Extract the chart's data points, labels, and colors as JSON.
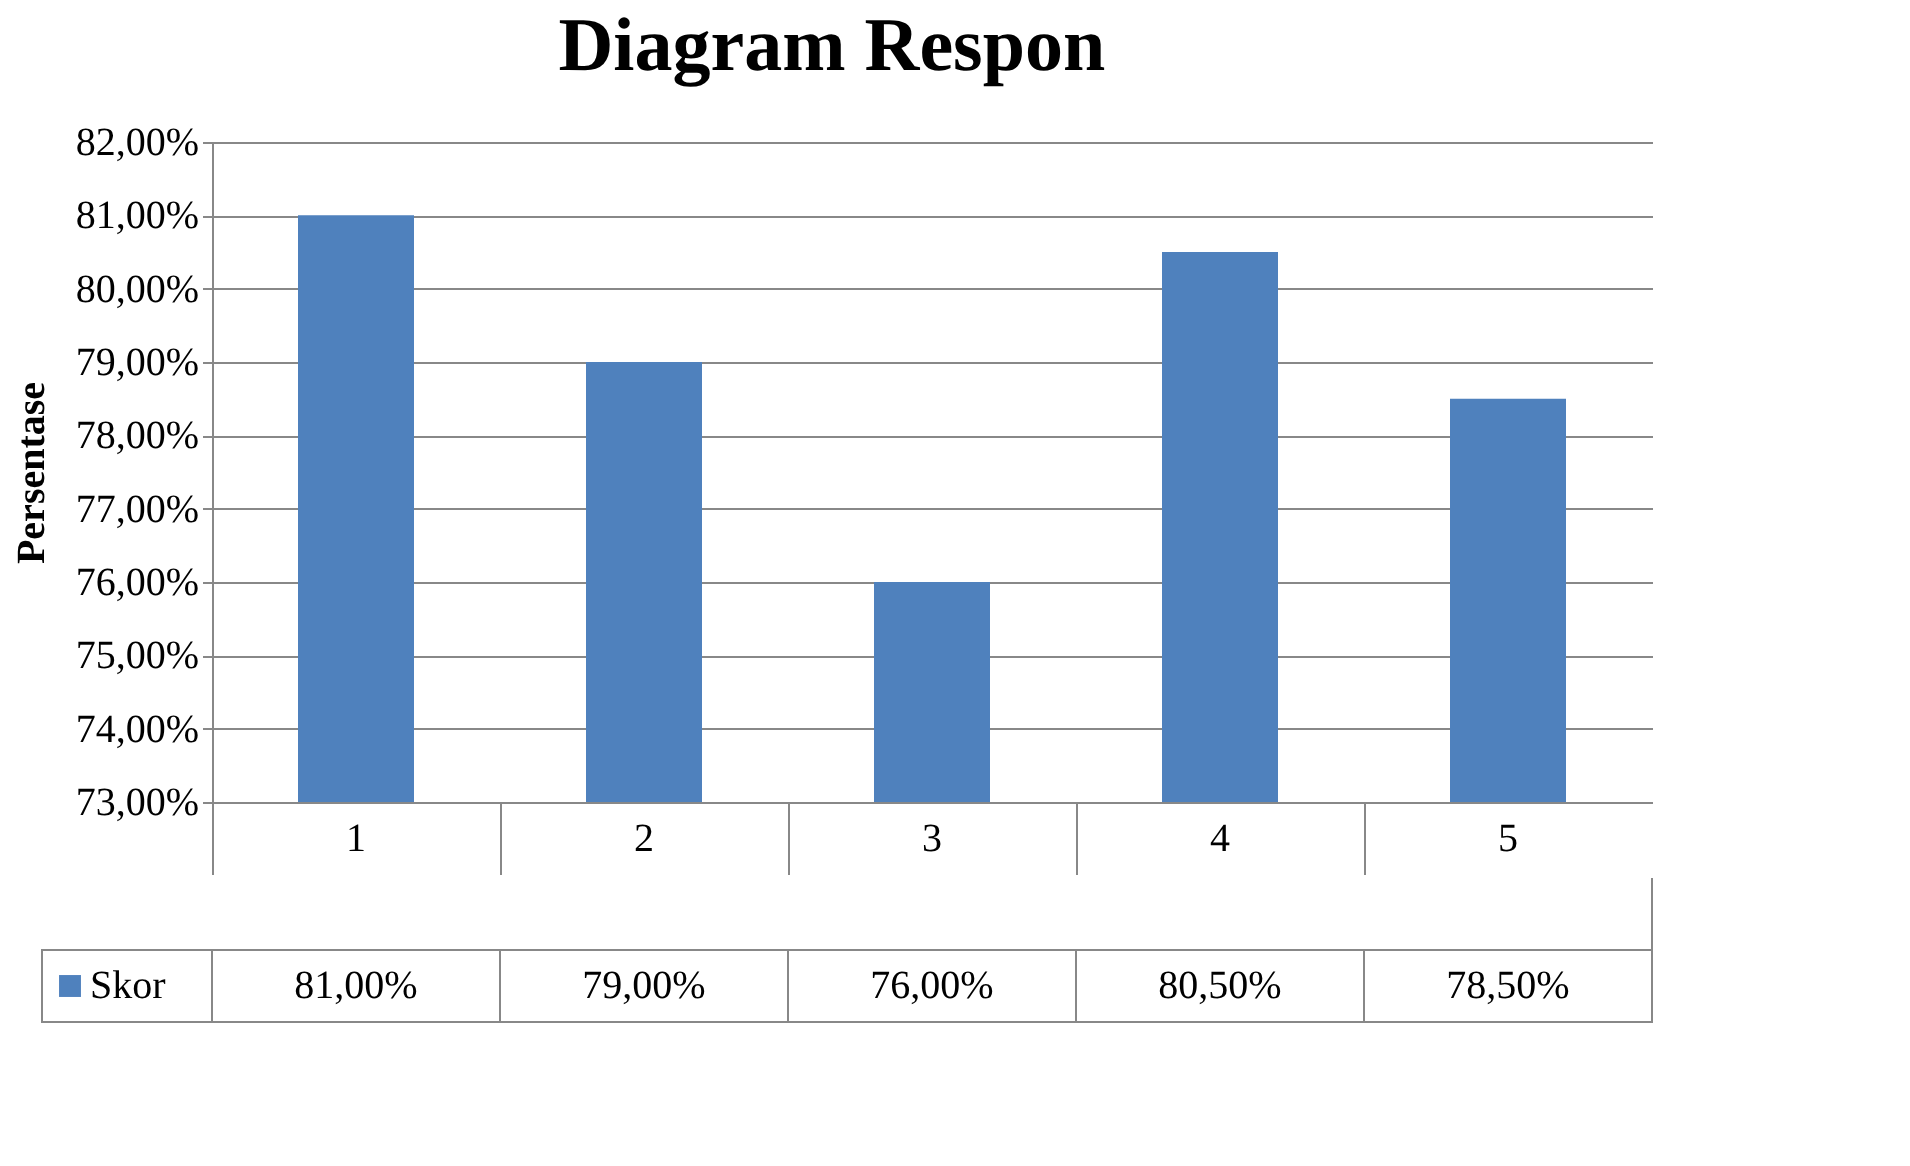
{
  "chart_data": {
    "type": "bar",
    "title": "Diagram Respon",
    "ylabel": "Persentase",
    "categories": [
      "1",
      "2",
      "3",
      "4",
      "5"
    ],
    "series": [
      {
        "name": "Skor",
        "color": "#4f81bd",
        "values": [
          81,
          79,
          76,
          80.5,
          78.5
        ],
        "value_labels": [
          "81,00%",
          "79,00%",
          "76,00%",
          "80,50%",
          "78,50%"
        ]
      }
    ],
    "ylim": [
      73,
      82
    ],
    "yticks": [
      {
        "value": 73,
        "label": "73,00%"
      },
      {
        "value": 74,
        "label": "74,00%"
      },
      {
        "value": 75,
        "label": "75,00%"
      },
      {
        "value": 76,
        "label": "76,00%"
      },
      {
        "value": 77,
        "label": "77,00%"
      },
      {
        "value": 78,
        "label": "78,00%"
      },
      {
        "value": 79,
        "label": "79,00%"
      },
      {
        "value": 80,
        "label": "80,00%"
      },
      {
        "value": 81,
        "label": "81,00%"
      },
      {
        "value": 82,
        "label": "82,00%"
      }
    ],
    "grid": "y",
    "legend": "bottom"
  }
}
